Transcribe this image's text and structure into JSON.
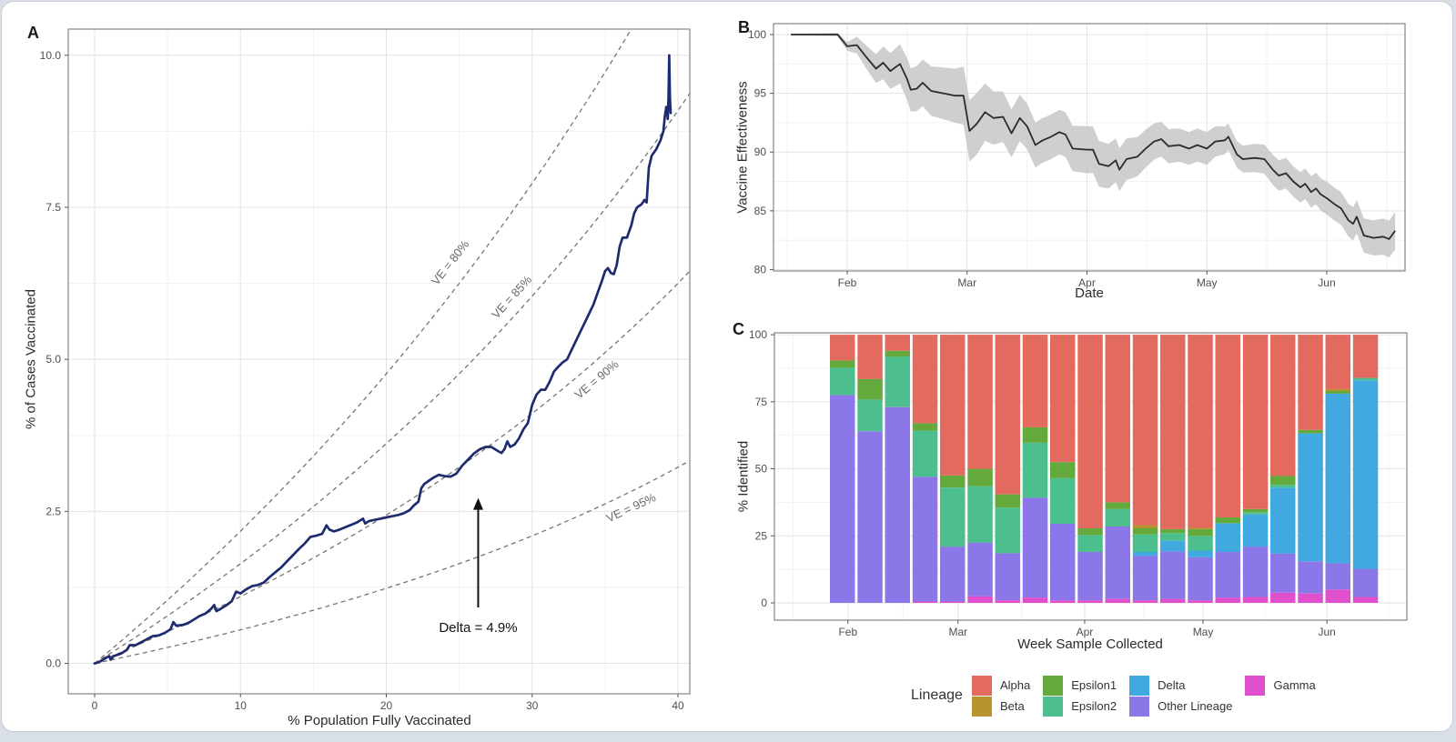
{
  "page": {
    "background": "#d9dfe7",
    "card_background": "#ffffff",
    "card_border": "#c8cdd5"
  },
  "figure": {
    "panels": {
      "a": "A",
      "b": "B",
      "c": "C"
    }
  },
  "style": {
    "grid_major": "#e3e3e3",
    "grid_minor": "#f2f2f2",
    "panel_border": "#8f8f8f",
    "tick_color": "#555555",
    "dashed_line_color": "#757575"
  },
  "chart_data": [
    {
      "panel": "A",
      "type": "line",
      "xlabel": "% Population Fully Vaccinated",
      "ylabel": "% of Cases Vaccinated",
      "xlim": [
        -1.81,
        40.81
      ],
      "ylim": [
        -0.5,
        10.43
      ],
      "xticks": [
        0,
        10,
        20,
        30,
        40
      ],
      "xtick_labels": [
        "0",
        "10",
        "20",
        "30",
        "40"
      ],
      "xminor": [
        5,
        15,
        25,
        35
      ],
      "yticks": [
        0,
        2.5,
        5,
        7.5,
        10
      ],
      "ytick_labels": [
        "0.0",
        "2.5",
        "5.0",
        "7.5",
        "10.0"
      ],
      "yminor": [
        1.25,
        3.75,
        6.25,
        8.75
      ],
      "line_color": "#1e2b6e",
      "points": [
        [
          0,
          0
        ],
        [
          0.3,
          0.02
        ],
        [
          0.7,
          0.08
        ],
        [
          1,
          0.12
        ],
        [
          1.1,
          0.06
        ],
        [
          1.3,
          0.12
        ],
        [
          1.8,
          0.16
        ],
        [
          2.2,
          0.22
        ],
        [
          2.4,
          0.3
        ],
        [
          2.8,
          0.3
        ],
        [
          3.2,
          0.35
        ],
        [
          3.6,
          0.4
        ],
        [
          4,
          0.45
        ],
        [
          4.4,
          0.46
        ],
        [
          4.8,
          0.5
        ],
        [
          5.2,
          0.56
        ],
        [
          5.4,
          0.68
        ],
        [
          5.6,
          0.62
        ],
        [
          6,
          0.63
        ],
        [
          6.4,
          0.66
        ],
        [
          6.8,
          0.72
        ],
        [
          7.2,
          0.78
        ],
        [
          7.6,
          0.82
        ],
        [
          8,
          0.9
        ],
        [
          8.2,
          0.96
        ],
        [
          8.35,
          0.86
        ],
        [
          8.6,
          0.89
        ],
        [
          9,
          0.95
        ],
        [
          9.4,
          1.02
        ],
        [
          9.7,
          1.18
        ],
        [
          10,
          1.15
        ],
        [
          10.4,
          1.22
        ],
        [
          10.8,
          1.27
        ],
        [
          11.2,
          1.29
        ],
        [
          11.6,
          1.33
        ],
        [
          12,
          1.42
        ],
        [
          12.4,
          1.5
        ],
        [
          12.8,
          1.58
        ],
        [
          13.2,
          1.68
        ],
        [
          13.6,
          1.78
        ],
        [
          14,
          1.88
        ],
        [
          14.4,
          1.97
        ],
        [
          14.8,
          2.08
        ],
        [
          15.2,
          2.1
        ],
        [
          15.6,
          2.13
        ],
        [
          15.9,
          2.27
        ],
        [
          16.1,
          2.2
        ],
        [
          16.4,
          2.17
        ],
        [
          16.8,
          2.2
        ],
        [
          17.2,
          2.24
        ],
        [
          17.6,
          2.28
        ],
        [
          18,
          2.32
        ],
        [
          18.4,
          2.38
        ],
        [
          18.55,
          2.3
        ],
        [
          18.8,
          2.34
        ],
        [
          19.2,
          2.36
        ],
        [
          19.6,
          2.38
        ],
        [
          20,
          2.4
        ],
        [
          20.4,
          2.42
        ],
        [
          20.8,
          2.44
        ],
        [
          21.2,
          2.47
        ],
        [
          21.6,
          2.52
        ],
        [
          21.9,
          2.6
        ],
        [
          22.2,
          2.66
        ],
        [
          22.4,
          2.88
        ],
        [
          22.6,
          2.95
        ],
        [
          22.9,
          3
        ],
        [
          23.2,
          3.05
        ],
        [
          23.6,
          3.1
        ],
        [
          24,
          3.08
        ],
        [
          24.4,
          3.07
        ],
        [
          24.8,
          3.12
        ],
        [
          25.2,
          3.25
        ],
        [
          25.6,
          3.35
        ],
        [
          26,
          3.45
        ],
        [
          26.4,
          3.52
        ],
        [
          26.8,
          3.56
        ],
        [
          27.2,
          3.56
        ],
        [
          27.6,
          3.5
        ],
        [
          27.9,
          3.46
        ],
        [
          28.1,
          3.52
        ],
        [
          28.3,
          3.65
        ],
        [
          28.5,
          3.56
        ],
        [
          28.8,
          3.6
        ],
        [
          29.1,
          3.7
        ],
        [
          29.4,
          3.85
        ],
        [
          29.7,
          3.95
        ],
        [
          30,
          4.25
        ],
        [
          30.3,
          4.42
        ],
        [
          30.6,
          4.5
        ],
        [
          30.9,
          4.5
        ],
        [
          31.2,
          4.63
        ],
        [
          31.5,
          4.8
        ],
        [
          31.8,
          4.88
        ],
        [
          32.1,
          4.95
        ],
        [
          32.4,
          5
        ],
        [
          32.7,
          5.15
        ],
        [
          33,
          5.3
        ],
        [
          33.3,
          5.45
        ],
        [
          33.6,
          5.6
        ],
        [
          33.9,
          5.75
        ],
        [
          34.2,
          5.9
        ],
        [
          34.5,
          6.1
        ],
        [
          34.8,
          6.3
        ],
        [
          35,
          6.45
        ],
        [
          35.2,
          6.5
        ],
        [
          35.4,
          6.42
        ],
        [
          35.6,
          6.4
        ],
        [
          35.8,
          6.55
        ],
        [
          36,
          6.85
        ],
        [
          36.2,
          7
        ],
        [
          36.5,
          7
        ],
        [
          36.8,
          7.2
        ],
        [
          37,
          7.4
        ],
        [
          37.2,
          7.5
        ],
        [
          37.5,
          7.55
        ],
        [
          37.7,
          7.62
        ],
        [
          37.85,
          7.58
        ],
        [
          38,
          8.15
        ],
        [
          38.2,
          8.35
        ],
        [
          38.5,
          8.45
        ],
        [
          38.8,
          8.6
        ],
        [
          39,
          8.75
        ],
        [
          39.1,
          9
        ],
        [
          39.2,
          9.15
        ],
        [
          39.3,
          8.95
        ],
        [
          39.35,
          9.3
        ],
        [
          39.4,
          10
        ],
        [
          39.45,
          9.3
        ],
        [
          39.5,
          9.05
        ]
      ],
      "reference_lines": [
        {
          "ve": 80,
          "label": "VE = 80%",
          "label_at": [
            24.6,
            6.55
          ],
          "label_angle": -52
        },
        {
          "ve": 85,
          "label": "VE = 85%",
          "label_at": [
            28.8,
            5.98
          ],
          "label_angle": -48
        },
        {
          "ve": 90,
          "label": "VE = 90%",
          "label_at": [
            34.6,
            4.62
          ],
          "label_angle": -40
        },
        {
          "ve": 95,
          "label": "VE = 95%",
          "label_at": [
            36.9,
            2.5
          ],
          "label_angle": -25
        }
      ],
      "annotation": {
        "text": "Delta = 4.9%",
        "text_at": [
          26.3,
          0.52
        ],
        "arrow_from": [
          26.3,
          0.92
        ],
        "arrow_to": [
          26.3,
          2.72
        ]
      }
    },
    {
      "panel": "B",
      "type": "line_with_ribbon",
      "xlabel": "Date",
      "ylabel": "Vaccine Effectiveness",
      "xlim": [
        1.385,
        6.653
      ],
      "ylim": [
        79.88,
        100.93
      ],
      "xticks": [
        2,
        3,
        4,
        5,
        6
      ],
      "xtick_labels": [
        "Feb",
        "Mar",
        "Apr",
        "May",
        "Jun"
      ],
      "xminor": [
        1.5,
        2.5,
        3.5,
        4.5,
        5.5,
        6.5
      ],
      "yticks": [
        80,
        85,
        90,
        95,
        100
      ],
      "ytick_labels": [
        "80",
        "85",
        "90",
        "95",
        "100"
      ],
      "yminor": [
        82.5,
        87.5,
        92.5,
        97.5
      ],
      "line_color": "#2b2b2b",
      "ribbon_color": "#c7c7c7",
      "points": [
        [
          1.53,
          100
        ],
        [
          1.92,
          100
        ],
        [
          2.0,
          99.0
        ],
        [
          2.08,
          99.1
        ],
        [
          2.15,
          98.2
        ],
        [
          2.24,
          97.1
        ],
        [
          2.3,
          97.6
        ],
        [
          2.36,
          96.9
        ],
        [
          2.44,
          97.5
        ],
        [
          2.5,
          96.2
        ],
        [
          2.53,
          95.3
        ],
        [
          2.58,
          95.4
        ],
        [
          2.63,
          95.9
        ],
        [
          2.7,
          95.2
        ],
        [
          2.8,
          95.0
        ],
        [
          2.9,
          94.8
        ],
        [
          2.97,
          94.8
        ],
        [
          3.02,
          91.8
        ],
        [
          3.08,
          92.4
        ],
        [
          3.15,
          93.4
        ],
        [
          3.22,
          92.9
        ],
        [
          3.3,
          93.0
        ],
        [
          3.37,
          91.6
        ],
        [
          3.44,
          92.9
        ],
        [
          3.5,
          92.2
        ],
        [
          3.57,
          90.6
        ],
        [
          3.63,
          91.0
        ],
        [
          3.7,
          91.3
        ],
        [
          3.77,
          91.7
        ],
        [
          3.82,
          91.5
        ],
        [
          3.88,
          90.3
        ],
        [
          4.0,
          90.2
        ],
        [
          4.05,
          90.2
        ],
        [
          4.1,
          89.0
        ],
        [
          4.18,
          88.8
        ],
        [
          4.24,
          89.3
        ],
        [
          4.27,
          88.5
        ],
        [
          4.33,
          89.4
        ],
        [
          4.42,
          89.6
        ],
        [
          4.49,
          90.3
        ],
        [
          4.56,
          90.9
        ],
        [
          4.62,
          91.1
        ],
        [
          4.68,
          90.5
        ],
        [
          4.77,
          90.6
        ],
        [
          4.85,
          90.3
        ],
        [
          4.92,
          90.6
        ],
        [
          5.0,
          90.3
        ],
        [
          5.07,
          90.9
        ],
        [
          5.15,
          91.0
        ],
        [
          5.18,
          91.3
        ],
        [
          5.25,
          89.8
        ],
        [
          5.3,
          89.4
        ],
        [
          5.4,
          89.5
        ],
        [
          5.48,
          89.4
        ],
        [
          5.55,
          88.5
        ],
        [
          5.6,
          88.0
        ],
        [
          5.66,
          88.2
        ],
        [
          5.72,
          87.5
        ],
        [
          5.78,
          87.0
        ],
        [
          5.82,
          87.3
        ],
        [
          5.87,
          86.6
        ],
        [
          5.91,
          86.9
        ],
        [
          5.95,
          86.4
        ],
        [
          6.01,
          86.0
        ],
        [
          6.06,
          85.6
        ],
        [
          6.12,
          85.2
        ],
        [
          6.18,
          84.2
        ],
        [
          6.22,
          83.9
        ],
        [
          6.25,
          84.5
        ],
        [
          6.31,
          82.9
        ],
        [
          6.39,
          82.7
        ],
        [
          6.47,
          82.8
        ],
        [
          6.52,
          82.6
        ],
        [
          6.57,
          83.3
        ]
      ],
      "ribbon_halfwidth": [
        [
          1.53,
          0.05
        ],
        [
          1.95,
          0.15
        ],
        [
          2.1,
          0.8
        ],
        [
          2.3,
          1.4
        ],
        [
          2.5,
          1.8
        ],
        [
          2.7,
          2.1
        ],
        [
          2.9,
          2.3
        ],
        [
          3.05,
          2.7
        ],
        [
          3.2,
          2.3
        ],
        [
          3.4,
          2.0
        ],
        [
          3.6,
          1.9
        ],
        [
          3.8,
          1.9
        ],
        [
          4.0,
          2.0
        ],
        [
          4.2,
          1.9
        ],
        [
          4.4,
          1.7
        ],
        [
          4.6,
          1.5
        ],
        [
          4.8,
          1.4
        ],
        [
          5.0,
          1.4
        ],
        [
          5.2,
          1.1
        ],
        [
          5.4,
          1.2
        ],
        [
          5.6,
          1.3
        ],
        [
          5.8,
          1.3
        ],
        [
          6.0,
          1.4
        ],
        [
          6.2,
          1.4
        ],
        [
          6.4,
          1.5
        ],
        [
          6.57,
          1.6
        ]
      ]
    },
    {
      "panel": "C",
      "type": "stacked_bar",
      "xlabel": "Week Sample Collected",
      "ylabel": "% Identified",
      "ylim": [
        -6.44,
        100.7
      ],
      "yticks": [
        0,
        25,
        50,
        75,
        100
      ],
      "ytick_labels": [
        "0",
        "25",
        "50",
        "75",
        "100"
      ],
      "yminor": [
        12.5,
        37.5,
        62.5,
        87.5
      ],
      "xticks": [
        {
          "pos": 0.2,
          "label": "Feb"
        },
        {
          "pos": 4.2,
          "label": "Mar"
        },
        {
          "pos": 8.8,
          "label": "Apr"
        },
        {
          "pos": 13.1,
          "label": "May"
        },
        {
          "pos": 17.6,
          "label": "Jun"
        }
      ],
      "xminor_pos": [
        -1.8,
        2.2,
        6.5,
        10.95,
        15.35,
        19.85
      ],
      "legend_title": "Lineage",
      "lineages": [
        {
          "name": "Alpha",
          "color": "#e36a5e"
        },
        {
          "name": "Beta",
          "color": "#b7942f"
        },
        {
          "name": "Epsilon1",
          "color": "#64a93c"
        },
        {
          "name": "Epsilon2",
          "color": "#4dbe8d"
        },
        {
          "name": "Delta",
          "color": "#41a9e0"
        },
        {
          "name": "Other Lineage",
          "color": "#8c77e8"
        },
        {
          "name": "Gamma",
          "color": "#e050cc"
        }
      ],
      "stack_order": [
        "Gamma",
        "Other Lineage",
        "Delta",
        "Epsilon2",
        "Epsilon1",
        "Beta",
        "Alpha"
      ],
      "bars": [
        [
          0,
          77.5,
          0,
          10.2,
          2.7,
          0,
          9.6
        ],
        [
          0,
          64.0,
          0,
          11.8,
          7.7,
          0,
          16.5
        ],
        [
          0,
          73.0,
          0,
          18.8,
          2.2,
          0,
          6.0
        ],
        [
          0.5,
          46.5,
          0,
          17.2,
          2.8,
          0,
          33.0
        ],
        [
          0.5,
          20.5,
          0,
          22.0,
          4.5,
          0,
          52.5
        ],
        [
          2.5,
          20.0,
          0,
          21.0,
          6.5,
          0,
          50.0
        ],
        [
          1.0,
          17.5,
          0,
          17.0,
          5.0,
          0,
          59.5
        ],
        [
          2.0,
          37.2,
          0,
          20.5,
          5.8,
          0,
          34.5
        ],
        [
          1.0,
          28.5,
          0,
          17.0,
          6.0,
          0,
          47.5
        ],
        [
          1.0,
          18.0,
          0,
          6.3,
          2.5,
          0,
          72.2
        ],
        [
          1.5,
          27.0,
          0,
          6.5,
          2.5,
          0,
          62.5
        ],
        [
          1.0,
          16.5,
          1.5,
          6.5,
          2.3,
          1.2,
          71.0
        ],
        [
          1.5,
          17.7,
          4.0,
          2.8,
          1.5,
          0,
          72.5
        ],
        [
          1.0,
          16.0,
          2.5,
          5.5,
          2.5,
          0.5,
          72.0
        ],
        [
          2.0,
          17.0,
          10.7,
          0,
          2.2,
          0,
          68.1
        ],
        [
          2.2,
          18.8,
          12.0,
          0.8,
          1.2,
          0,
          65.0
        ],
        [
          3.8,
          14.6,
          24.5,
          1.1,
          3.3,
          0,
          52.7
        ],
        [
          3.5,
          12.0,
          47.7,
          0,
          1.3,
          0,
          35.5
        ],
        [
          5.0,
          9.8,
          63.2,
          0,
          1.0,
          0.8,
          20.2
        ],
        [
          2.2,
          10.5,
          70.3,
          0.9,
          0,
          0,
          16.1
        ]
      ]
    }
  ]
}
